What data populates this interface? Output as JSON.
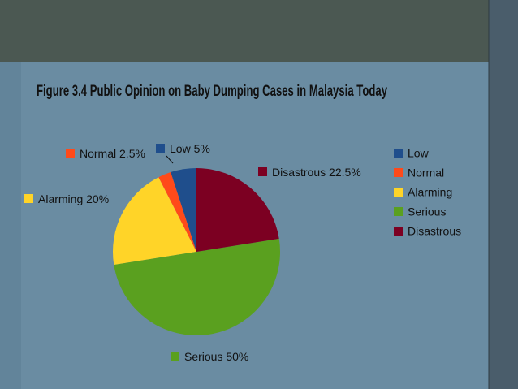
{
  "chart_data": {
    "type": "pie",
    "title": "Figure 3.4 Public Opinion on Baby Dumping Cases in Malaysia Today",
    "categories": [
      "Low",
      "Normal",
      "Alarming",
      "Serious",
      "Disastrous"
    ],
    "values": [
      5,
      2.5,
      20,
      50,
      22.5
    ],
    "value_labels": [
      "5%",
      "2.5%",
      "20%",
      "50%",
      "22.5%"
    ],
    "colors": [
      "#1f4e8c",
      "#ff4a1a",
      "#ffd428",
      "#5aa01f",
      "#7c0022"
    ],
    "legend": "right"
  }
}
